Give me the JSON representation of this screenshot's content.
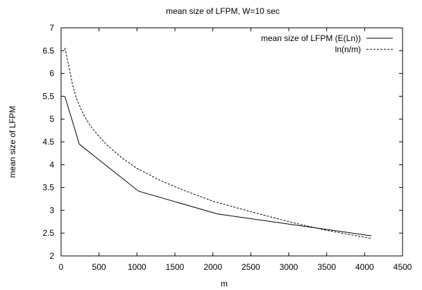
{
  "chart_data": {
    "type": "line",
    "title": "mean size of LFPM, W=10 sec",
    "xlabel": "m",
    "ylabel": "mean size of LFPM",
    "xlim": [
      0,
      4500
    ],
    "ylim": [
      2,
      7
    ],
    "xticks": [
      0,
      500,
      1000,
      1500,
      2000,
      2500,
      3000,
      3500,
      4000,
      4500
    ],
    "yticks": [
      2,
      2.5,
      3,
      3.5,
      4,
      4.5,
      5,
      5.5,
      6,
      6.5,
      7
    ],
    "xtick_labels": [
      "0",
      "500",
      "1000",
      "1500",
      "2000",
      "2500",
      "3000",
      "3500",
      "4000",
      "4500"
    ],
    "ytick_labels": [
      "2",
      "2.5",
      "3",
      "3.5",
      "4",
      "4.5",
      "5",
      "5.5",
      "6",
      "6.5",
      "7"
    ],
    "grid": false,
    "legend_position": "top-right",
    "series": [
      {
        "name": "mean size of LFPM (E(Ln))",
        "style": "solid",
        "color": "#000000",
        "x": [
          50,
          240,
          1020,
          2060,
          4090
        ],
        "y": [
          5.5,
          4.45,
          3.42,
          2.92,
          2.44
        ]
      },
      {
        "name": "ln(n/m)",
        "style": "dashed",
        "color": "#000000",
        "x": [
          50,
          100,
          150,
          200,
          300,
          400,
          500,
          600,
          800,
          1000,
          1300,
          1600,
          2000,
          2500,
          3000,
          3500,
          4096
        ],
        "y": [
          6.56,
          6.18,
          5.76,
          5.46,
          5.08,
          4.82,
          4.62,
          4.44,
          4.15,
          3.92,
          3.66,
          3.45,
          3.2,
          2.97,
          2.75,
          2.56,
          2.38
        ]
      }
    ]
  }
}
